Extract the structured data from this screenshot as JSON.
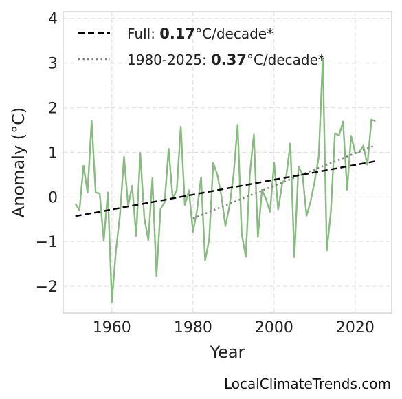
{
  "chart_data": {
    "type": "line",
    "xlabel": "Year",
    "ylabel": "Anomaly (°C)",
    "xlim": [
      1948,
      2029
    ],
    "ylim": [
      -2.6,
      4.15
    ],
    "x_ticks": [
      1960,
      1980,
      2000,
      2020
    ],
    "y_ticks": [
      -2,
      -1,
      0,
      1,
      2,
      3,
      4
    ],
    "y_tick_labels": [
      "−2",
      "−1",
      "0",
      "1",
      "2",
      "3",
      "4"
    ],
    "grid": true,
    "legend_position": "top-left",
    "series": [
      {
        "color": "#88bb80",
        "x": [
          1951,
          1952,
          1953,
          1954,
          1955,
          1956,
          1957,
          1958,
          1959,
          1960,
          1961,
          1962,
          1963,
          1964,
          1965,
          1966,
          1967,
          1968,
          1969,
          1970,
          1971,
          1972,
          1973,
          1974,
          1975,
          1976,
          1977,
          1978,
          1979,
          1980,
          1981,
          1982,
          1983,
          1984,
          1985,
          1986,
          1987,
          1988,
          1989,
          1990,
          1991,
          1992,
          1993,
          1994,
          1995,
          1996,
          1997,
          1998,
          1999,
          2000,
          2001,
          2002,
          2003,
          2004,
          2005,
          2006,
          2007,
          2008,
          2009,
          2010,
          2011,
          2012,
          2013,
          2014,
          2015,
          2016,
          2017,
          2018,
          2019,
          2020,
          2021,
          2022,
          2023,
          2024,
          2025
        ],
        "y": [
          -0.15,
          -0.3,
          0.7,
          0.1,
          1.7,
          0.1,
          0.08,
          -0.98,
          0.1,
          -2.35,
          -1.2,
          -0.4,
          0.9,
          -0.2,
          0.25,
          -0.87,
          0.98,
          -0.47,
          -0.97,
          0.42,
          -1.77,
          -0.27,
          -0.12,
          1.08,
          -0.03,
          0.15,
          1.58,
          -0.18,
          0.15,
          -0.78,
          -0.3,
          0.44,
          -1.42,
          -0.95,
          0.76,
          0.5,
          0.03,
          -0.65,
          -0.2,
          0.5,
          1.62,
          -0.82,
          -1.34,
          0.5,
          1.4,
          -0.9,
          0.16,
          -0.05,
          -0.33,
          0.77,
          -0.28,
          0.3,
          0.47,
          1.2,
          -1.35,
          0.68,
          0.5,
          -0.42,
          -0.1,
          0.35,
          0.9,
          3.1,
          -1.2,
          -0.32,
          1.42,
          1.38,
          1.69,
          0.16,
          1.37,
          0.98,
          1.0,
          1.15,
          0.72,
          1.73,
          1.7
        ]
      },
      {
        "name": "Full: ",
        "rate": "0.17",
        "unit": "°C/decade*",
        "style": "dashed",
        "color": "#000000",
        "x": [
          1951,
          2025
        ],
        "y": [
          -0.43,
          0.8
        ]
      },
      {
        "name": "1980-2025: ",
        "rate": "0.37",
        "unit": "°C/decade*",
        "style": "dotted",
        "color": "#808080",
        "x": [
          1980,
          2025
        ],
        "y": [
          -0.48,
          1.16
        ]
      }
    ]
  },
  "credit": "LocalClimateTrends.com"
}
